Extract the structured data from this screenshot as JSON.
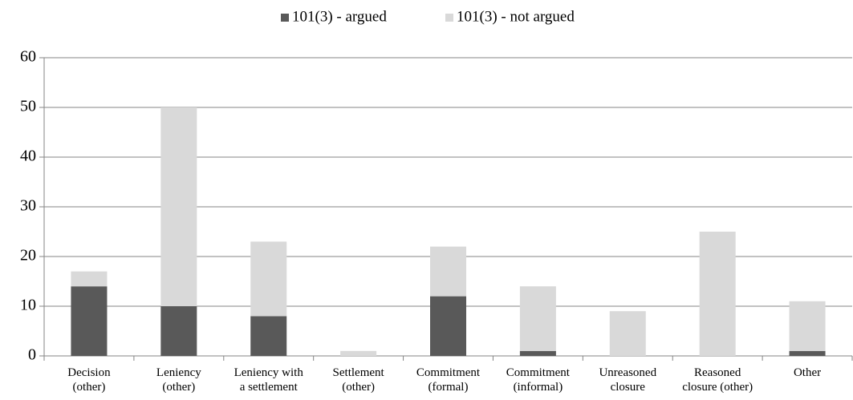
{
  "chart_data": {
    "type": "stacked_bar",
    "categories": [
      "Decision\n(other)",
      "Leniency\n(other)",
      "Leniency with\na settlement",
      "Settlement\n(other)",
      "Commitment\n(formal)",
      "Commitment\n(informal)",
      "Unreasoned\nclosure",
      "Reasoned\nclosure (other)",
      "Other"
    ],
    "series": [
      {
        "name": "101(3) - argued",
        "color": "#595959",
        "values": [
          14,
          10,
          8,
          0,
          12,
          1,
          0,
          0,
          1
        ]
      },
      {
        "name": "101(3) - not argued",
        "color": "#d9d9d9",
        "values": [
          3,
          40,
          15,
          1,
          10,
          13,
          9,
          25,
          10
        ]
      }
    ],
    "ylim": [
      0,
      60
    ],
    "yticks": [
      0,
      10,
      20,
      30,
      40,
      50,
      60
    ],
    "grid": true,
    "legend": "top"
  }
}
